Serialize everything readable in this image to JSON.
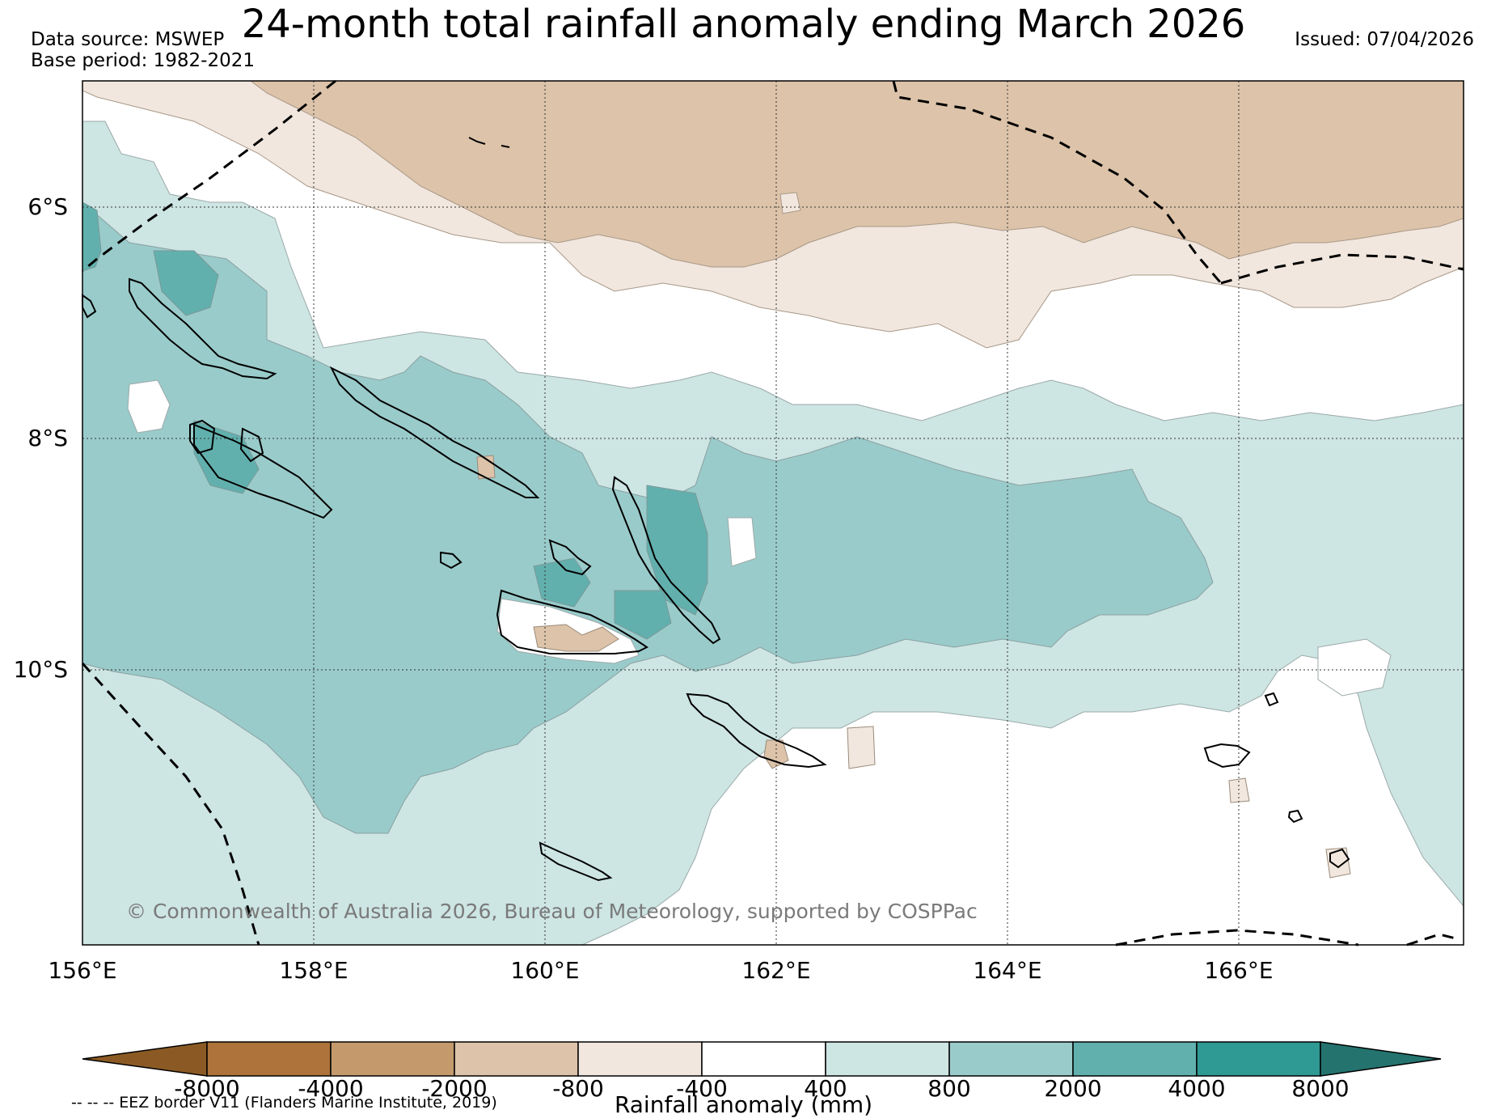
{
  "header": {
    "title": "24-month total rainfall anomaly ending March 2026",
    "data_source": "Data source: MSWEP",
    "base_period": "Base period: 1982-2021",
    "issued": "Issued: 07/04/2026"
  },
  "map": {
    "lat_labels": [
      "6°S",
      "8°S",
      "10°S"
    ],
    "lon_labels": [
      "156°E",
      "158°E",
      "160°E",
      "162°E",
      "164°E",
      "166°E"
    ],
    "copyright": "© Commonwealth of Australia 2026, Bureau of Meteorology, supported by COSPPac"
  },
  "colorbar": {
    "ticks": [
      "-8000",
      "-4000",
      "-2000",
      "-800",
      "-400",
      "400",
      "800",
      "2000",
      "4000",
      "8000"
    ],
    "colors": [
      "#8b5a24",
      "#ad733a",
      "#c49a6d",
      "#dcc3a9",
      "#f1e7de",
      "#ffffff",
      "#cde5e3",
      "#9acbcb",
      "#62b0ae",
      "#2f9993",
      "#24736e"
    ],
    "label": "Rainfall anomaly (mm)"
  },
  "legend": {
    "eez_note": "-- -- -- EEZ border V11 (Flanders Marine Institute, 2019)"
  }
}
